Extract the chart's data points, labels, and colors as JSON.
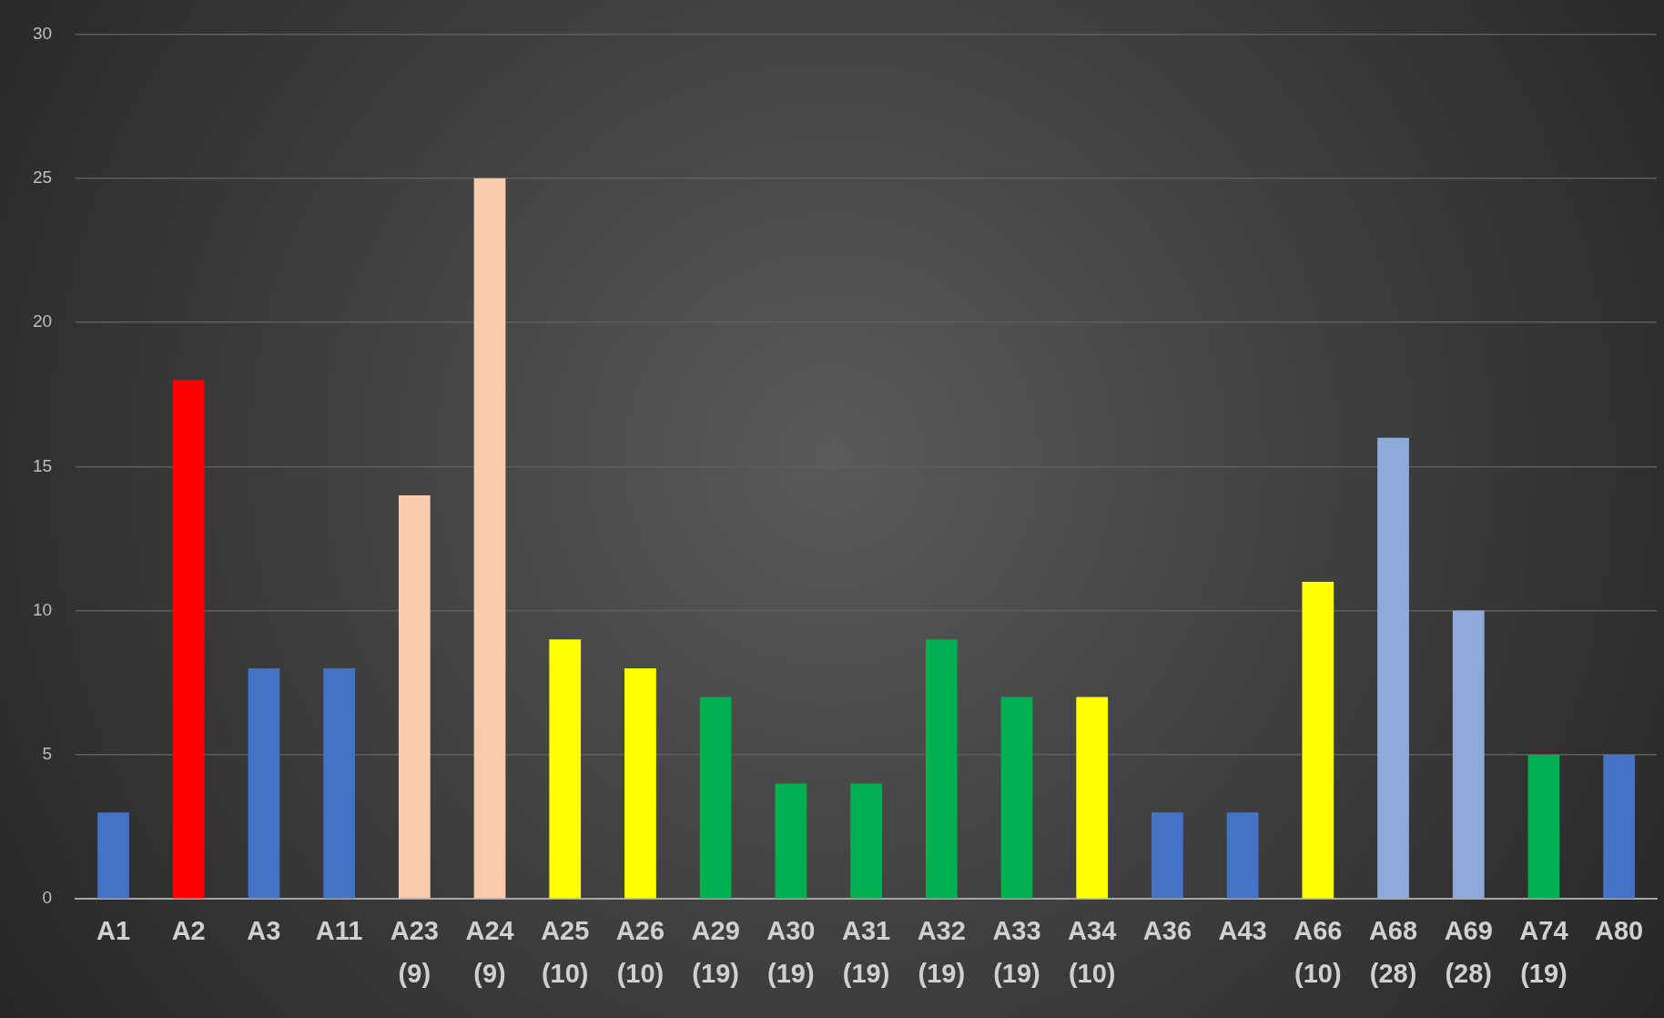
{
  "chart_data": {
    "type": "bar",
    "categories": [
      "A1",
      "A2",
      "A3",
      "A11",
      "A23 (9)",
      "A24 (9)",
      "A25 (10)",
      "A26 (10)",
      "A29 (19)",
      "A30 (19)",
      "A31 (19)",
      "A32 (19)",
      "A33 (19)",
      "A34 (10)",
      "A36",
      "A43",
      "A66 (10)",
      "A68 (28)",
      "A69 (28)",
      "A74 (19)",
      "A80"
    ],
    "values": [
      3,
      18,
      8,
      8,
      14,
      25,
      9,
      8,
      7,
      4,
      4,
      9,
      7,
      7,
      3,
      3,
      11,
      16,
      10,
      5,
      5
    ],
    "colors": [
      "#4472c4",
      "#ff0000",
      "#4472c4",
      "#4472c4",
      "#f8cbad",
      "#f8cbad",
      "#ffff00",
      "#ffff00",
      "#00b050",
      "#00b050",
      "#00b050",
      "#00b050",
      "#00b050",
      "#ffff00",
      "#4472c4",
      "#4472c4",
      "#ffff00",
      "#8eaadb",
      "#8eaadb",
      "#00b050",
      "#4472c4"
    ],
    "ylim": [
      0,
      30
    ],
    "yticks": [
      0,
      5,
      10,
      15,
      20,
      25,
      30
    ],
    "grid": "y",
    "legend": false
  }
}
